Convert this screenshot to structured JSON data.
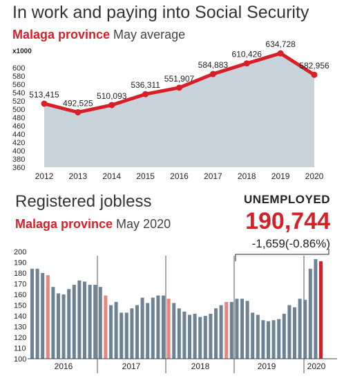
{
  "top": {
    "title": "In work and paying into Social Security",
    "sub_region": "Malaga province",
    "sub_rest": " May average"
  },
  "bottom": {
    "title": "Registered jobless",
    "sub_region": "Malaga province",
    "sub_rest": " May 2020",
    "unemployed_label": "UNEMPLOYED",
    "unemployed_value": "190,744",
    "unemployed_change": "-1,659(-0.86%)"
  },
  "chart_data": [
    {
      "type": "area",
      "title": "In work and paying into Social Security",
      "ylabel": "x1000",
      "categories": [
        "2012",
        "2013",
        "2014",
        "2015",
        "2016",
        "2017",
        "2018",
        "2019",
        "2020"
      ],
      "values": [
        513415,
        492525,
        510093,
        536311,
        551907,
        584883,
        610426,
        634728,
        582956
      ],
      "data_labels": [
        "513,415",
        "492,525",
        "510,093",
        "536,311",
        "551,907",
        "584,883",
        "610,426",
        "634,728",
        "582,956"
      ],
      "yticks": [
        360,
        380,
        400,
        420,
        440,
        460,
        480,
        500,
        520,
        540,
        560,
        580,
        600
      ],
      "ylim": [
        360,
        620
      ],
      "colors": {
        "line": "#d61f26",
        "area": "#c8d3dc"
      }
    },
    {
      "type": "bar",
      "title": "Registered jobless",
      "year_labels": [
        "2016",
        "2017",
        "2018",
        "2019",
        "2020"
      ],
      "yticks": [
        100,
        110,
        120,
        130,
        140,
        150,
        160,
        170,
        180,
        190,
        200
      ],
      "ylim": [
        100,
        200
      ],
      "values": [
        184,
        184,
        180,
        178,
        167,
        161,
        160,
        165,
        169,
        173,
        172,
        169,
        169,
        167,
        159,
        150,
        153,
        143,
        143,
        147,
        150,
        157,
        152,
        157,
        159,
        159,
        156,
        152,
        147,
        144,
        141,
        142,
        139,
        140,
        142,
        147,
        150,
        153,
        153,
        156,
        156,
        154,
        143,
        141,
        136,
        135,
        136,
        137,
        142,
        150,
        148,
        156,
        155,
        184,
        193,
        191
      ],
      "highlight": "#e8857f",
      "highlight_indices": [
        3,
        14,
        26,
        37,
        55
      ],
      "colors": {
        "bar": "#6d8394",
        "highlight": "#e8857f",
        "current": "#d61f26"
      }
    }
  ]
}
